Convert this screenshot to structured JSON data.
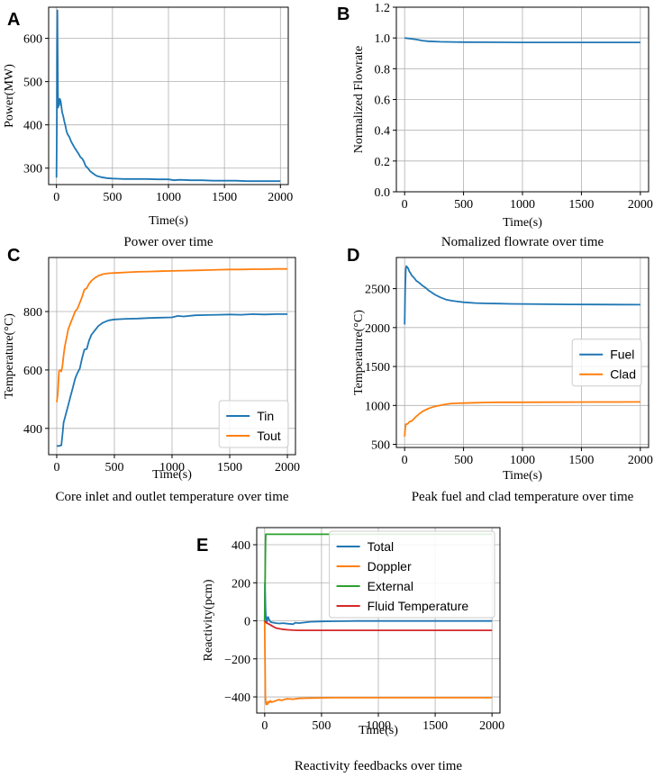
{
  "figure": {
    "width": 726,
    "height": 863
  },
  "chart_data": [
    {
      "letter": "A",
      "type": "line",
      "title": "Power over time",
      "xlabel": "Time(s)",
      "ylabel": "Power(MW)",
      "xlim": [
        -70,
        2070
      ],
      "ylim": [
        262,
        672
      ],
      "xticks": [
        0,
        500,
        1000,
        1500,
        2000
      ],
      "yticks": [
        300,
        400,
        500,
        600
      ],
      "grid": true,
      "legend": null,
      "series": [
        {
          "name": "Power",
          "color": "#1f77b4",
          "x": [
            0,
            3,
            5,
            8,
            10,
            13,
            15,
            18,
            20,
            23,
            26,
            30,
            35,
            40,
            45,
            50,
            60,
            70,
            80,
            90,
            100,
            115,
            130,
            145,
            160,
            180,
            200,
            215,
            230,
            245,
            260,
            280,
            300,
            330,
            360,
            400,
            450,
            500,
            600,
            700,
            800,
            900,
            1000,
            1050,
            1100,
            1200,
            1300,
            1400,
            1500,
            1600,
            1700,
            1800,
            1900,
            2000
          ],
          "y": [
            278,
            400,
            580,
            665,
            600,
            480,
            440,
            455,
            460,
            445,
            450,
            460,
            457,
            450,
            440,
            430,
            420,
            408,
            398,
            385,
            378,
            372,
            362,
            355,
            348,
            340,
            332,
            325,
            322,
            315,
            305,
            300,
            293,
            287,
            282,
            279,
            277,
            276,
            275,
            275,
            275,
            274,
            274,
            272,
            273,
            272,
            272,
            271,
            271,
            271,
            270,
            270,
            270,
            270
          ]
        }
      ]
    },
    {
      "letter": "B",
      "type": "line",
      "title": "Nomalized flowrate over time",
      "xlabel": "Time(s)",
      "ylabel": "Normalized Flowrate",
      "xlim": [
        -70,
        2070
      ],
      "ylim": [
        0,
        1.2
      ],
      "xticks": [
        0,
        500,
        1000,
        1500,
        2000
      ],
      "yticks": [
        0.0,
        0.2,
        0.4,
        0.6,
        0.8,
        1.0,
        1.2
      ],
      "ytick_labels": [
        "0.0",
        "0.2",
        "0.4",
        "0.6",
        "0.8",
        "1.0",
        "1.2"
      ],
      "grid": true,
      "legend": null,
      "series": [
        {
          "name": "Flowrate",
          "color": "#1f77b4",
          "x": [
            0,
            50,
            100,
            150,
            200,
            300,
            400,
            500,
            700,
            1000,
            1500,
            2000
          ],
          "y": [
            1.0,
            0.995,
            0.99,
            0.983,
            0.979,
            0.975,
            0.974,
            0.973,
            0.972,
            0.971,
            0.971,
            0.971
          ]
        }
      ]
    },
    {
      "letter": "C",
      "type": "line",
      "title": "Core inlet and outlet temperature over time",
      "xlabel": "Time(s)",
      "ylabel": "Temperature(°C)",
      "xlim": [
        -70,
        2070
      ],
      "ylim": [
        310,
        985
      ],
      "xticks": [
        0,
        500,
        1000,
        1500,
        2000
      ],
      "yticks": [
        400,
        600,
        800
      ],
      "grid": true,
      "legend": {
        "loc": "lower right"
      },
      "series": [
        {
          "name": "Tin",
          "color": "#1f77b4",
          "x": [
            0,
            20,
            40,
            50,
            60,
            80,
            100,
            120,
            140,
            160,
            180,
            200,
            220,
            240,
            260,
            280,
            300,
            330,
            360,
            400,
            450,
            500,
            600,
            700,
            800,
            900,
            1000,
            1050,
            1100,
            1200,
            1300,
            1400,
            1500,
            1600,
            1700,
            1800,
            1900,
            2000
          ],
          "y": [
            340,
            340,
            342,
            380,
            420,
            450,
            480,
            510,
            540,
            570,
            590,
            605,
            640,
            670,
            672,
            700,
            720,
            735,
            750,
            762,
            770,
            773,
            775,
            776,
            778,
            779,
            780,
            785,
            783,
            787,
            788,
            789,
            790,
            789,
            791,
            790,
            791,
            791
          ]
        },
        {
          "name": "Tout",
          "color": "#ff7f0e",
          "x": [
            0,
            10,
            20,
            30,
            40,
            50,
            60,
            70,
            80,
            100,
            120,
            140,
            160,
            180,
            200,
            220,
            240,
            260,
            280,
            300,
            330,
            360,
            400,
            450,
            500,
            600,
            700,
            800,
            900,
            1000,
            1100,
            1200,
            1300,
            1400,
            1500,
            1600,
            1700,
            1800,
            1900,
            2000
          ],
          "y": [
            490,
            520,
            595,
            600,
            595,
            615,
            650,
            680,
            700,
            740,
            760,
            780,
            800,
            810,
            830,
            850,
            875,
            880,
            895,
            905,
            915,
            922,
            928,
            931,
            932,
            934,
            936,
            937,
            938,
            939,
            940,
            941,
            942,
            943,
            944,
            944,
            945,
            945,
            946,
            946
          ]
        }
      ]
    },
    {
      "letter": "D",
      "type": "line",
      "title": "Peak fuel and clad temperature over time",
      "xlabel": "Time(s)",
      "ylabel": "Temperature(°C)",
      "xlim": [
        -70,
        2070
      ],
      "ylim": [
        460,
        2900
      ],
      "xticks": [
        0,
        500,
        1000,
        1500,
        2000
      ],
      "yticks": [
        500,
        1000,
        1500,
        2000,
        2500
      ],
      "grid": true,
      "legend": {
        "loc": "center right"
      },
      "series": [
        {
          "name": "Fuel",
          "color": "#1f77b4",
          "x": [
            0,
            5,
            10,
            15,
            20,
            30,
            40,
            50,
            60,
            80,
            100,
            120,
            150,
            180,
            200,
            230,
            260,
            300,
            350,
            400,
            450,
            500,
            600,
            700,
            800,
            900,
            1000,
            1200,
            1400,
            1600,
            1800,
            2000
          ],
          "y": [
            2040,
            2500,
            2750,
            2790,
            2780,
            2760,
            2720,
            2700,
            2670,
            2640,
            2600,
            2580,
            2540,
            2510,
            2480,
            2450,
            2420,
            2390,
            2360,
            2345,
            2335,
            2325,
            2315,
            2310,
            2308,
            2305,
            2303,
            2300,
            2298,
            2296,
            2295,
            2294
          ]
        },
        {
          "name": "Clad",
          "color": "#ff7f0e",
          "x": [
            0,
            5,
            10,
            20,
            30,
            40,
            60,
            80,
            100,
            130,
            160,
            200,
            250,
            300,
            350,
            400,
            500,
            600,
            700,
            800,
            1000,
            1200,
            1400,
            1600,
            1800,
            2000
          ],
          "y": [
            600,
            700,
            760,
            760,
            770,
            790,
            800,
            830,
            860,
            900,
            930,
            960,
            985,
            1000,
            1015,
            1025,
            1030,
            1035,
            1038,
            1040,
            1040,
            1042,
            1043,
            1044,
            1044,
            1045
          ]
        }
      ]
    },
    {
      "letter": "E",
      "type": "line",
      "title": "Reactivity feedbacks over time",
      "xlabel": "Time(s)",
      "ylabel": "Reactivity(pcm)",
      "xlim": [
        -70,
        2070
      ],
      "ylim": [
        -485,
        490
      ],
      "xticks": [
        0,
        500,
        1000,
        1500,
        2000
      ],
      "yticks": [
        -400,
        -200,
        0,
        200,
        400
      ],
      "ytick_labels": [
        "−400",
        "−200",
        "0",
        "200",
        "400"
      ],
      "grid": true,
      "legend": {
        "loc": "upper right"
      },
      "series": [
        {
          "name": "Total",
          "color": "#1f77b4",
          "x": [
            0,
            2,
            4,
            6,
            8,
            10,
            15,
            20,
            25,
            30,
            40,
            50,
            60,
            80,
            100,
            130,
            160,
            200,
            250,
            270,
            300,
            350,
            400,
            500,
            600,
            800,
            1000,
            1500,
            2000
          ],
          "y": [
            0,
            200,
            150,
            100,
            60,
            30,
            10,
            -5,
            15,
            20,
            5,
            -5,
            -8,
            -10,
            -12,
            -14,
            -12,
            -15,
            -18,
            -10,
            -12,
            -9,
            -5,
            -3,
            -2,
            -1,
            -1,
            -1,
            -1
          ]
        },
        {
          "name": "Doppler",
          "color": "#ff7f0e",
          "x": [
            0,
            3,
            6,
            10,
            15,
            20,
            25,
            30,
            40,
            50,
            60,
            80,
            100,
            120,
            150,
            180,
            200,
            250,
            300,
            350,
            400,
            500,
            600,
            800,
            1000,
            1500,
            2000
          ],
          "y": [
            0,
            -200,
            -400,
            -430,
            -440,
            -430,
            -438,
            -425,
            -430,
            -420,
            -428,
            -424,
            -420,
            -415,
            -418,
            -412,
            -410,
            -412,
            -408,
            -407,
            -406,
            -405,
            -404,
            -404,
            -404,
            -404,
            -404
          ]
        },
        {
          "name": "External",
          "color": "#2ca02c",
          "x": [
            0,
            2,
            5,
            8,
            10,
            2000
          ],
          "y": [
            0,
            100,
            300,
            420,
            455,
            455
          ]
        },
        {
          "name": "Fluid Temperature",
          "color": "#d62728",
          "x": [
            0,
            10,
            20,
            40,
            60,
            80,
            100,
            150,
            200,
            250,
            300,
            400,
            500,
            1000,
            1500,
            2000
          ],
          "y": [
            0,
            -8,
            -12,
            -18,
            -25,
            -32,
            -38,
            -44,
            -47,
            -49,
            -50,
            -50,
            -50,
            -50,
            -50,
            -50
          ]
        }
      ]
    }
  ]
}
